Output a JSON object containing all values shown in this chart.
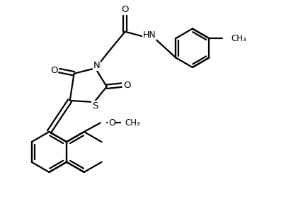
{
  "background_color": "#ffffff",
  "line_color": "#000000",
  "line_width": 1.6,
  "figsize": [
    4.28,
    2.78
  ],
  "dpi": 100,
  "xlim": [
    0,
    10
  ],
  "ylim": [
    0,
    6.5
  ]
}
